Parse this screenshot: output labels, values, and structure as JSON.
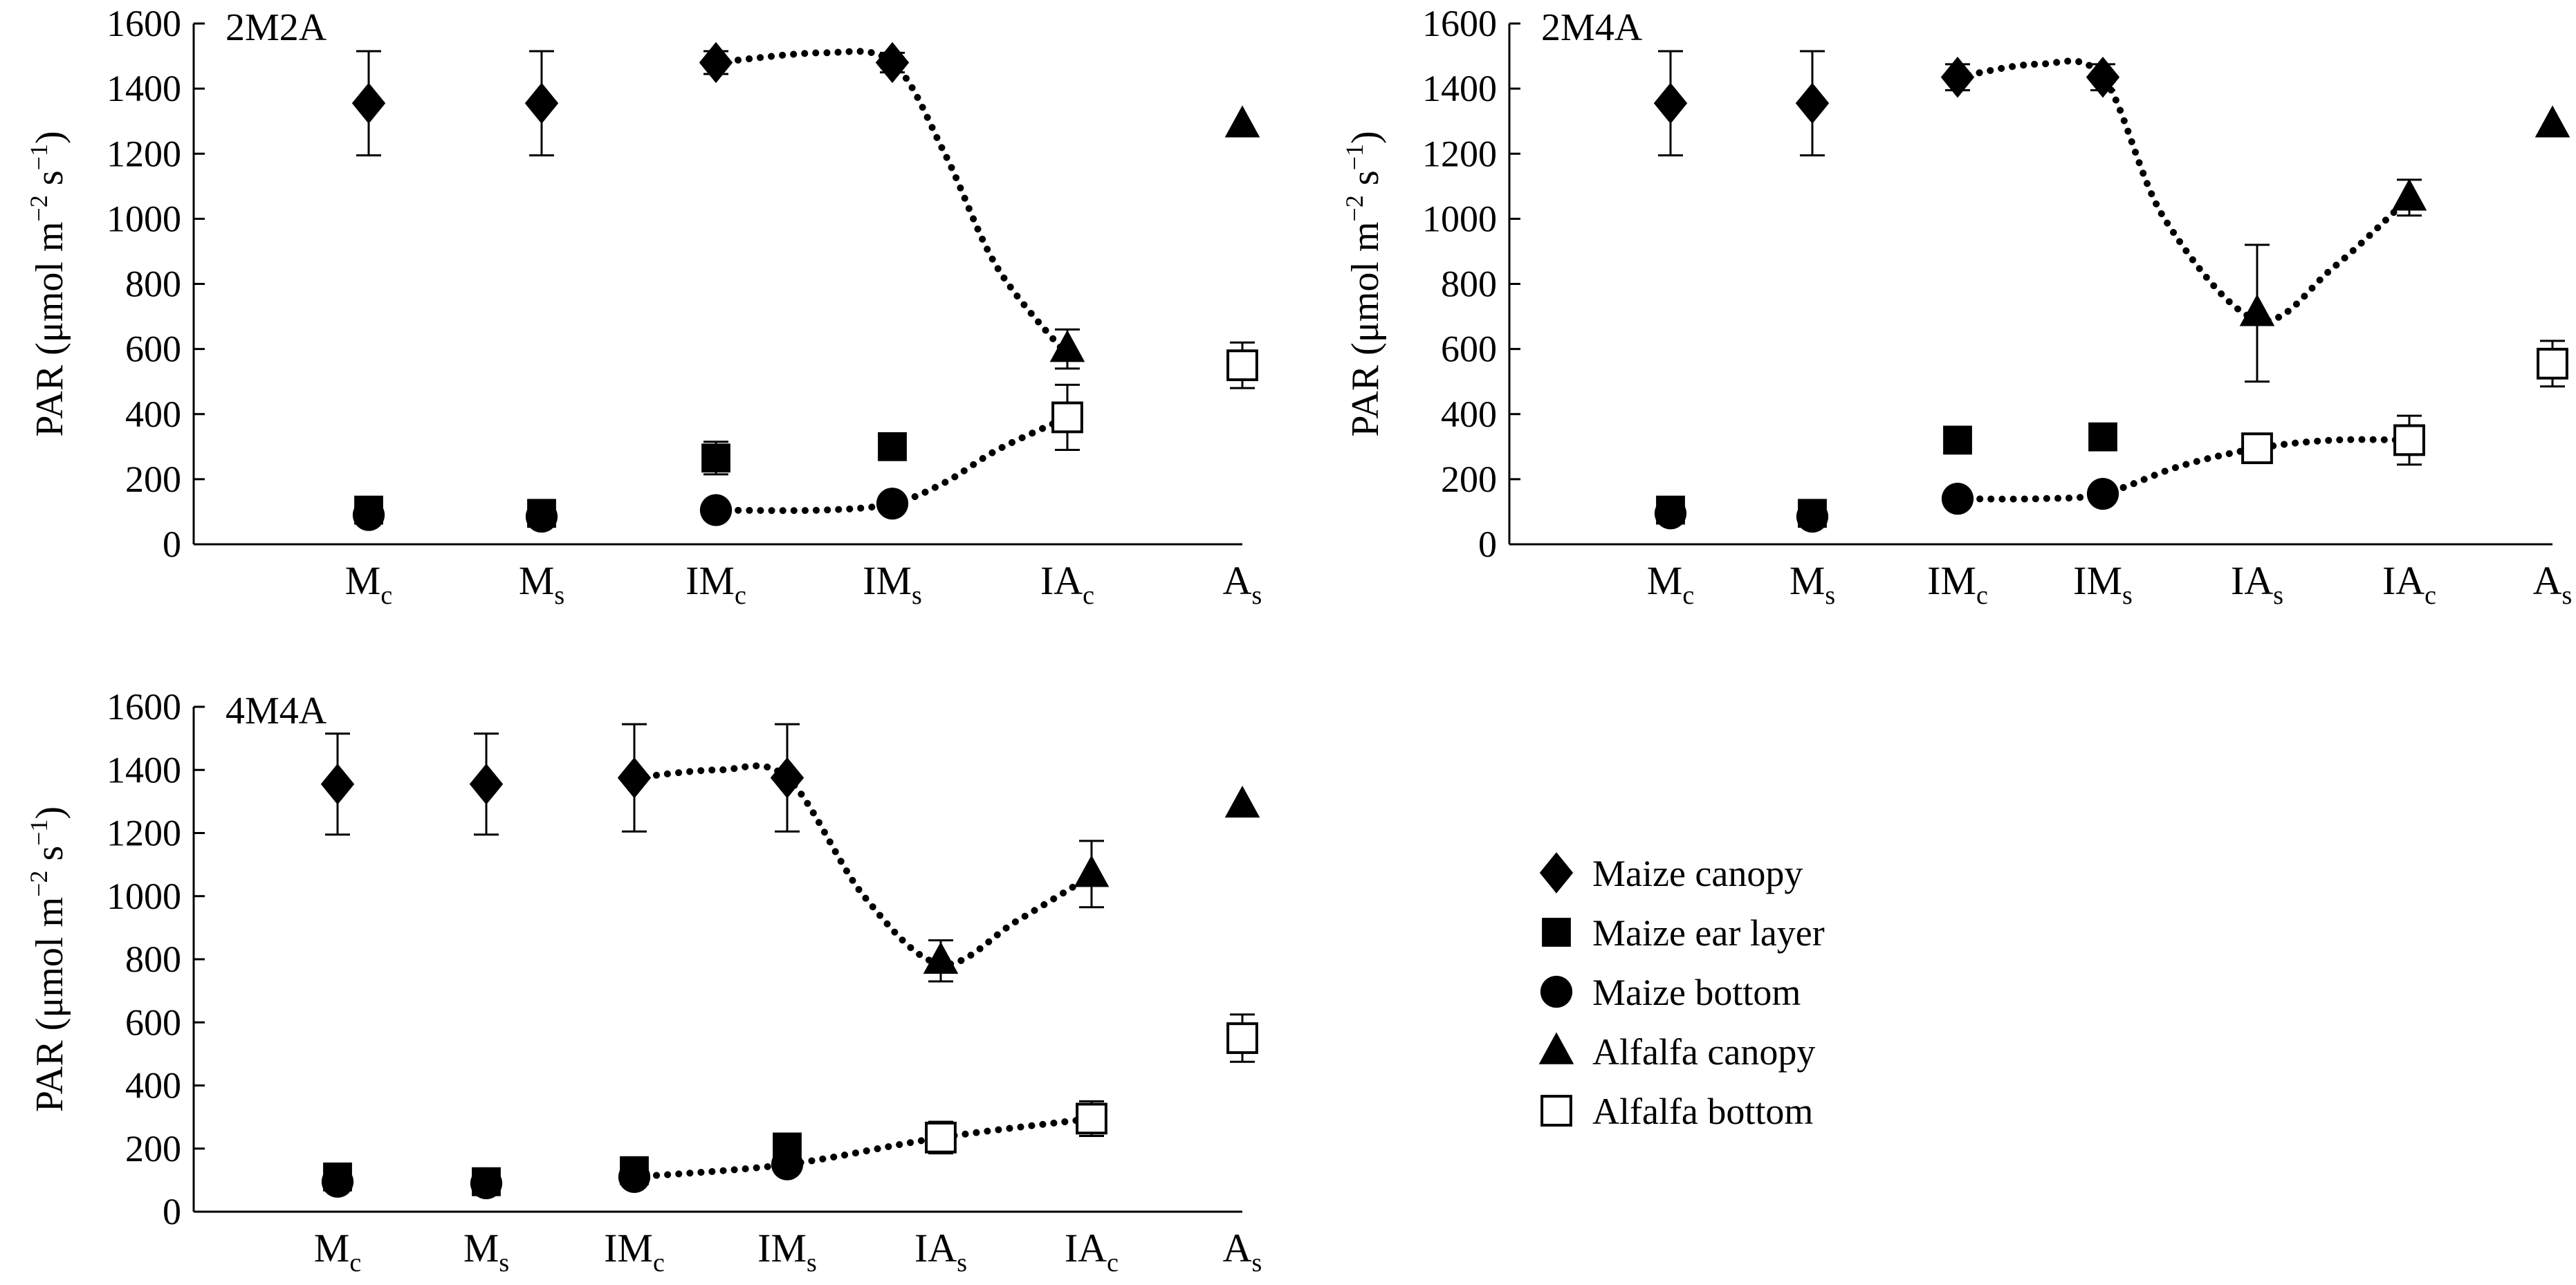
{
  "ylabel_parts": [
    "PAR (μmol m",
    "−2",
    " s",
    "−1",
    ")"
  ],
  "yticks": [
    0,
    200,
    400,
    600,
    800,
    1000,
    1200,
    1400,
    1600
  ],
  "legend": [
    {
      "key": "canopy",
      "label": "Maize canopy",
      "marker": "diamond",
      "fill": "#000000"
    },
    {
      "key": "ear",
      "label": "Maize ear layer",
      "marker": "square",
      "fill": "#000000"
    },
    {
      "key": "bottom",
      "label": "Maize bottom",
      "marker": "circle",
      "fill": "#000000"
    },
    {
      "key": "acanopy",
      "label": "Alfalfa canopy",
      "marker": "triangle",
      "fill": "#000000"
    },
    {
      "key": "abottom",
      "label": "Alfalfa bottom",
      "marker": "open-square",
      "fill": "#ffffff"
    }
  ],
  "chart_data": [
    {
      "type": "scatter",
      "title": "2M2A",
      "ylim": [
        0,
        1600
      ],
      "categories": [
        [
          "M",
          "c"
        ],
        [
          "M",
          "s"
        ],
        [
          "IM",
          "c"
        ],
        [
          "IM",
          "s"
        ],
        [
          "IA",
          "c"
        ],
        [
          "A",
          "s"
        ]
      ],
      "series": [
        {
          "name": "Maize canopy",
          "points": [
            [
              0,
              1355,
              160
            ],
            [
              1,
              1355,
              160
            ],
            [
              2,
              1480,
              35
            ],
            [
              3,
              1480,
              30
            ]
          ]
        },
        {
          "name": "Maize ear layer",
          "points": [
            [
              0,
              105,
              20
            ],
            [
              1,
              95,
              15
            ],
            [
              2,
              265,
              50
            ],
            [
              3,
              300,
              35
            ]
          ]
        },
        {
          "name": "Maize bottom",
          "points": [
            [
              0,
              90,
              0
            ],
            [
              1,
              85,
              0
            ],
            [
              2,
              105,
              0
            ],
            [
              3,
              125,
              0
            ]
          ]
        },
        {
          "name": "Alfalfa canopy",
          "points": [
            [
              4,
              600,
              60
            ],
            [
              5,
              1290,
              0
            ]
          ]
        },
        {
          "name": "Alfalfa bottom",
          "points": [
            [
              4,
              390,
              100
            ],
            [
              5,
              550,
              70
            ]
          ]
        }
      ],
      "trend_lines": [
        [
          [
            2,
            1480
          ],
          [
            2.6,
            1510
          ],
          [
            3,
            1480
          ],
          [
            3.3,
            1200
          ],
          [
            3.6,
            850
          ],
          [
            4,
            580
          ]
        ],
        [
          [
            2,
            105
          ],
          [
            2.6,
            105
          ],
          [
            3,
            125
          ],
          [
            3.3,
            190
          ],
          [
            3.6,
            290
          ],
          [
            4,
            390
          ]
        ]
      ]
    },
    {
      "type": "scatter",
      "title": "2M4A",
      "ylim": [
        0,
        1600
      ],
      "categories": [
        [
          "M",
          "c"
        ],
        [
          "M",
          "s"
        ],
        [
          "IM",
          "c"
        ],
        [
          "IM",
          "s"
        ],
        [
          "IA",
          "s"
        ],
        [
          "IA",
          "c"
        ],
        [
          "A",
          "s"
        ]
      ],
      "series": [
        {
          "name": "Maize canopy",
          "points": [
            [
              0,
              1355,
              160
            ],
            [
              1,
              1355,
              160
            ],
            [
              2,
              1435,
              40
            ],
            [
              3,
              1435,
              40
            ]
          ]
        },
        {
          "name": "Maize ear layer",
          "points": [
            [
              0,
              105,
              0
            ],
            [
              1,
              95,
              0
            ],
            [
              2,
              320,
              0
            ],
            [
              3,
              330,
              0
            ]
          ]
        },
        {
          "name": "Maize bottom",
          "points": [
            [
              0,
              95,
              0
            ],
            [
              1,
              85,
              0
            ],
            [
              2,
              140,
              0
            ],
            [
              3,
              155,
              0
            ]
          ]
        },
        {
          "name": "Alfalfa canopy",
          "points": [
            [
              4,
              710,
              210
            ],
            [
              5,
              1065,
              55
            ],
            [
              6,
              1290,
              0
            ]
          ]
        },
        {
          "name": "Alfalfa bottom",
          "points": [
            [
              4,
              295,
              40
            ],
            [
              5,
              320,
              75
            ],
            [
              6,
              555,
              70
            ]
          ]
        }
      ],
      "trend_lines": [
        [
          [
            2,
            1435
          ],
          [
            2.55,
            1475
          ],
          [
            3,
            1435
          ],
          [
            3.4,
            1000
          ],
          [
            4,
            690
          ],
          [
            4.5,
            850
          ],
          [
            5,
            1065
          ]
        ],
        [
          [
            2,
            140
          ],
          [
            2.55,
            140
          ],
          [
            3,
            155
          ],
          [
            3.5,
            240
          ],
          [
            4,
            295
          ],
          [
            4.5,
            320
          ],
          [
            5,
            320
          ]
        ]
      ]
    },
    {
      "type": "scatter",
      "title": "4M4A",
      "ylim": [
        0,
        1600
      ],
      "categories": [
        [
          "M",
          "c"
        ],
        [
          "M",
          "s"
        ],
        [
          "IM",
          "c"
        ],
        [
          "IM",
          "s"
        ],
        [
          "IA",
          "s"
        ],
        [
          "IA",
          "c"
        ],
        [
          "A",
          "s"
        ]
      ],
      "series": [
        {
          "name": "Maize canopy",
          "points": [
            [
              0,
              1355,
              160
            ],
            [
              1,
              1355,
              160
            ],
            [
              2,
              1375,
              170
            ],
            [
              3,
              1375,
              170
            ]
          ]
        },
        {
          "name": "Maize ear layer",
          "points": [
            [
              0,
              110,
              0
            ],
            [
              1,
              95,
              0
            ],
            [
              2,
              130,
              0
            ],
            [
              3,
              205,
              0
            ]
          ]
        },
        {
          "name": "Maize bottom",
          "points": [
            [
              0,
              95,
              0
            ],
            [
              1,
              90,
              0
            ],
            [
              2,
              110,
              0
            ],
            [
              3,
              150,
              0
            ]
          ]
        },
        {
          "name": "Alfalfa canopy",
          "points": [
            [
              4,
              795,
              65
            ],
            [
              5,
              1070,
              105
            ],
            [
              6,
              1290,
              0
            ]
          ]
        },
        {
          "name": "Alfalfa bottom",
          "points": [
            [
              4,
              235,
              50
            ],
            [
              5,
              295,
              55
            ],
            [
              6,
              550,
              75
            ]
          ]
        }
      ],
      "trend_lines": [
        [
          [
            2,
            1375
          ],
          [
            2.55,
            1400
          ],
          [
            3,
            1375
          ],
          [
            3.5,
            1000
          ],
          [
            4,
            785
          ],
          [
            4.5,
            920
          ],
          [
            5,
            1065
          ]
        ],
        [
          [
            2,
            110
          ],
          [
            3,
            150
          ],
          [
            4,
            235
          ],
          [
            5,
            295
          ]
        ]
      ]
    }
  ]
}
